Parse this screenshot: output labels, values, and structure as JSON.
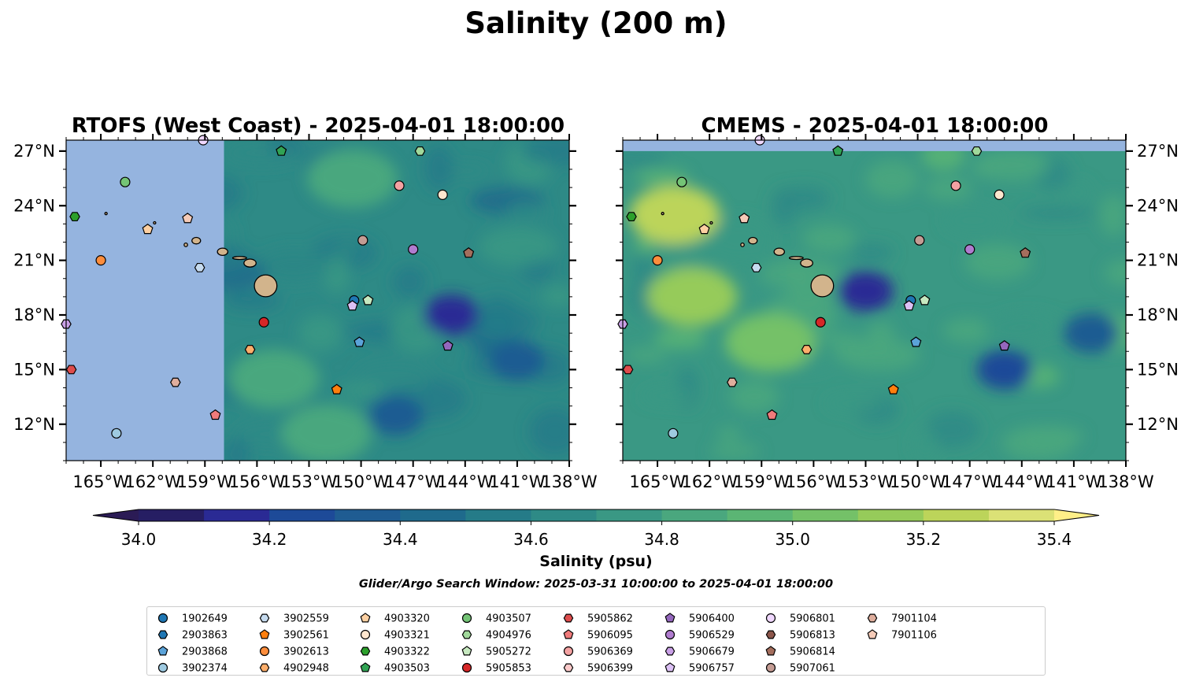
{
  "figure": {
    "title": "Salinity (200 m)",
    "search_window": "Glider/Argo Search Window: 2025-03-31 10:00:00 to 2025-04-01 18:00:00"
  },
  "colors": {
    "land_mask": "#95b4df",
    "island": "#d2b48c",
    "colormap": [
      "#261e63",
      "#2a2a94",
      "#1d4a98",
      "#1f5c92",
      "#1f6a8c",
      "#257b88",
      "#2e8a86",
      "#3a9884",
      "#4aa77e",
      "#5bb574",
      "#74c168",
      "#96cb5a",
      "#bcd45a",
      "#dbe176"
    ],
    "under": "#2b1b55",
    "over": "#ffef88"
  },
  "chart_data": [
    {
      "type": "heatmap",
      "name": "rtofs",
      "title": "RTOFS (West Coast) - 2025-04-01 18:00:00",
      "x_range": [
        -167,
        -138
      ],
      "y_range": [
        10,
        27.6
      ],
      "x_ticks": [
        "165°W",
        "162°W",
        "159°W",
        "156°W",
        "153°W",
        "150°W",
        "147°W",
        "144°W",
        "141°W",
        "138°W"
      ],
      "y_ticks": [
        "27°N",
        "24°N",
        "21°N",
        "18°N",
        "15°N",
        "12°N"
      ],
      "y_tick_side": "left",
      "model_west_edge_lon": -157.9,
      "mean_salinity": 34.62,
      "fresh_patches": [
        {
          "lon": -144.8,
          "lat": 18.0,
          "value": 34.15
        },
        {
          "lon": -141.0,
          "lat": 15.5,
          "value": 34.35
        },
        {
          "lon": -148.0,
          "lat": 12.5,
          "value": 34.4
        }
      ],
      "salty_patches": [
        {
          "lon": -150.5,
          "lat": 25.5,
          "value": 34.85
        },
        {
          "lon": -155.0,
          "lat": 14.5,
          "value": 34.85
        },
        {
          "lon": -152.0,
          "lat": 11.5,
          "value": 34.9
        }
      ]
    },
    {
      "type": "heatmap",
      "name": "cmems",
      "title": "CMEMS - 2025-04-01 18:00:00",
      "x_range": [
        -167,
        -138
      ],
      "y_range": [
        10,
        27.6
      ],
      "x_ticks": [
        "165°W",
        "162°W",
        "159°W",
        "156°W",
        "153°W",
        "150°W",
        "147°W",
        "144°W",
        "141°W",
        "138°W"
      ],
      "y_ticks": [
        "27°N",
        "24°N",
        "21°N",
        "18°N",
        "15°N",
        "12°N"
      ],
      "y_tick_side": "right",
      "mask_above_lat": 27,
      "mean_salinity": 34.78,
      "fresh_patches": [
        {
          "lon": -153.0,
          "lat": 19.3,
          "value": 34.1
        },
        {
          "lon": -145.0,
          "lat": 15.0,
          "value": 34.3
        },
        {
          "lon": -140.0,
          "lat": 17.0,
          "value": 34.35
        }
      ],
      "salty_patches": [
        {
          "lon": -164.0,
          "lat": 23.5,
          "value": 35.2
        },
        {
          "lon": -163.0,
          "lat": 19.0,
          "value": 35.15
        },
        {
          "lon": -158.5,
          "lat": 16.5,
          "value": 35.05
        }
      ]
    }
  ],
  "colorbar": {
    "label": "Salinity (psu)",
    "min": 34.0,
    "max": 35.4,
    "ticks": [
      "34.0",
      "34.2",
      "34.4",
      "34.6",
      "34.8",
      "35.0",
      "35.2",
      "35.4"
    ],
    "extend": "both"
  },
  "floats": [
    {
      "id": "1902649",
      "marker": "circle",
      "color": "#1f77b4",
      "lon": -150.4,
      "lat": 18.8
    },
    {
      "id": "2903863",
      "marker": "hexagon",
      "color": "#1f77b4"
    },
    {
      "id": "2903868",
      "marker": "pentagon",
      "color": "#5ba3d9",
      "lon": -150.1,
      "lat": 16.5
    },
    {
      "id": "3902374",
      "marker": "circle",
      "color": "#9ecae1",
      "lon": -164.1,
      "lat": 11.5
    },
    {
      "id": "3902559",
      "marker": "hexagon",
      "color": "#c6dbef",
      "lon": -159.3,
      "lat": 20.6
    },
    {
      "id": "3902561",
      "marker": "pentagon",
      "color": "#ff7f0e",
      "lon": -151.4,
      "lat": 13.9
    },
    {
      "id": "3902613",
      "marker": "circle",
      "color": "#fd8d3c",
      "lon": -165.0,
      "lat": 21.0
    },
    {
      "id": "4902948",
      "marker": "hexagon",
      "color": "#fdae6b",
      "lon": -156.4,
      "lat": 16.1
    },
    {
      "id": "4903320",
      "marker": "pentagon",
      "color": "#fdd0a2",
      "lon": -162.3,
      "lat": 22.7
    },
    {
      "id": "4903321",
      "marker": "circle",
      "color": "#fee6ce",
      "lon": -145.3,
      "lat": 24.6
    },
    {
      "id": "4903322",
      "marker": "hexagon",
      "color": "#2ca02c",
      "lon": -166.5,
      "lat": 23.4
    },
    {
      "id": "4903503",
      "marker": "pentagon",
      "color": "#31a354",
      "lon": -154.6,
      "lat": 27.0
    },
    {
      "id": "4903507",
      "marker": "circle",
      "color": "#74c476",
      "lon": -163.6,
      "lat": 25.3
    },
    {
      "id": "4904976",
      "marker": "hexagon",
      "color": "#a1d99b",
      "lon": -146.6,
      "lat": 27.0
    },
    {
      "id": "5905272",
      "marker": "pentagon",
      "color": "#c7e9c0",
      "lon": -149.6,
      "lat": 18.8
    },
    {
      "id": "5905853",
      "marker": "circle",
      "color": "#d62728",
      "lon": -155.6,
      "lat": 17.6
    },
    {
      "id": "5905862",
      "marker": "hexagon",
      "color": "#de4d4d",
      "lon": -166.7,
      "lat": 15.0
    },
    {
      "id": "5906095",
      "marker": "pentagon",
      "color": "#f07b7b",
      "lon": -158.4,
      "lat": 12.5
    },
    {
      "id": "5906369",
      "marker": "circle",
      "color": "#f4a2a2",
      "lon": -147.8,
      "lat": 25.1
    },
    {
      "id": "5906399",
      "marker": "hexagon",
      "color": "#fbcaca"
    },
    {
      "id": "5906400",
      "marker": "pentagon",
      "color": "#9467bd",
      "lon": -145.0,
      "lat": 16.3
    },
    {
      "id": "5906529",
      "marker": "circle",
      "color": "#b07ccf",
      "lon": -147.0,
      "lat": 21.6
    },
    {
      "id": "5906679",
      "marker": "hexagon",
      "color": "#c9a0e6",
      "lon": -167.0,
      "lat": 17.5
    },
    {
      "id": "5906757",
      "marker": "pentagon",
      "color": "#dcc1f5",
      "lon": -150.5,
      "lat": 18.5
    },
    {
      "id": "5906801",
      "marker": "circle",
      "color": "#f0d8ff",
      "lon": -159.1,
      "lat": 27.6
    },
    {
      "id": "5906813",
      "marker": "hexagon",
      "color": "#8c564b"
    },
    {
      "id": "5906814",
      "marker": "pentagon",
      "color": "#a46e5d",
      "lon": -143.8,
      "lat": 21.4
    },
    {
      "id": "5907061",
      "marker": "circle",
      "color": "#c49c94",
      "lon": -149.9,
      "lat": 22.1
    },
    {
      "id": "7901104",
      "marker": "hexagon",
      "color": "#dfae9d",
      "lon": -160.7,
      "lat": 14.3
    },
    {
      "id": "7901106",
      "marker": "pentagon",
      "color": "#f5cbb8",
      "lon": -160.0,
      "lat": 23.3
    }
  ],
  "islands": [
    {
      "name": "hawaii",
      "lon": -155.5,
      "lat": 19.6,
      "rx": 0.65,
      "ry": 0.6
    },
    {
      "name": "maui",
      "lon": -156.4,
      "lat": 20.85,
      "rx": 0.35,
      "ry": 0.22
    },
    {
      "name": "molokai",
      "lon": -157.0,
      "lat": 21.13,
      "rx": 0.4,
      "ry": 0.08
    },
    {
      "name": "oahu",
      "lon": -157.98,
      "lat": 21.47,
      "rx": 0.3,
      "ry": 0.2
    },
    {
      "name": "kauai",
      "lon": -159.5,
      "lat": 22.08,
      "rx": 0.25,
      "ry": 0.18
    },
    {
      "name": "niihau",
      "lon": -160.1,
      "lat": 21.85,
      "rx": 0.1,
      "ry": 0.1
    },
    {
      "name": "nihoa",
      "lon": -161.9,
      "lat": 23.06,
      "rx": 0.05,
      "ry": 0.05
    },
    {
      "name": "necker",
      "lon": -164.7,
      "lat": 23.57,
      "rx": 0.05,
      "ry": 0.05
    }
  ]
}
